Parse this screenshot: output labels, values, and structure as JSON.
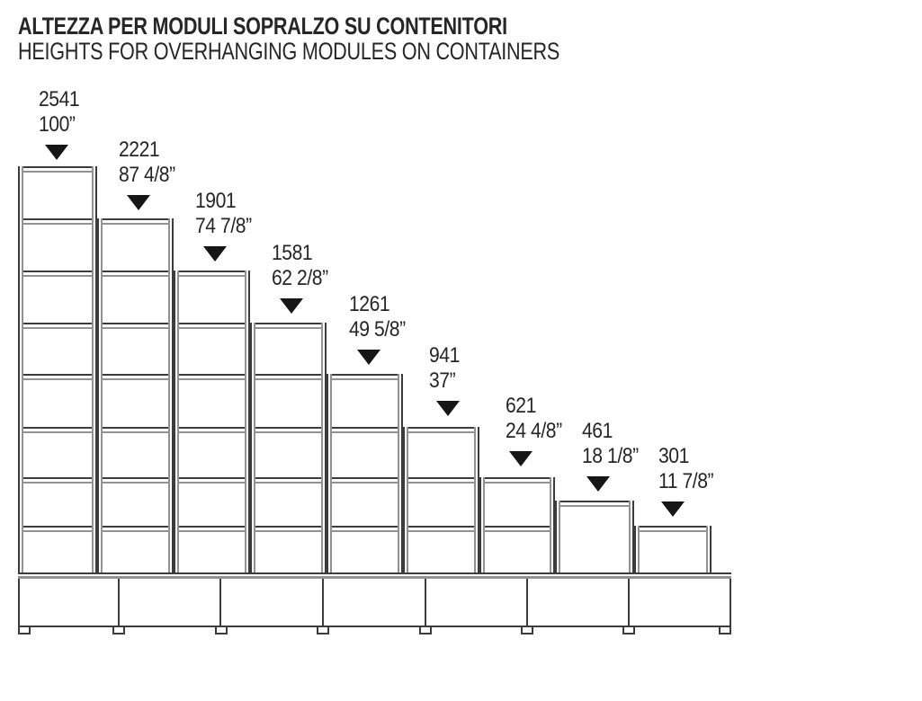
{
  "title": {
    "line1": "ALTEZZA PER MODULI SOPRALZO SU CONTENITORI",
    "line2": "HEIGHTS FOR OVERHANGING MODULES ON CONTAINERS"
  },
  "diagram": {
    "container_units": 7,
    "modules": [
      {
        "height_mm": "2541",
        "height_in": "100”",
        "shelf_rows": 8
      },
      {
        "height_mm": "2221",
        "height_in": "87 4/8”",
        "shelf_rows": 7
      },
      {
        "height_mm": "1901",
        "height_in": "74 7/8”",
        "shelf_rows": 6
      },
      {
        "height_mm": "1581",
        "height_in": "62 2/8”",
        "shelf_rows": 5
      },
      {
        "height_mm": "1261",
        "height_in": "49 5/8”",
        "shelf_rows": 4
      },
      {
        "height_mm": "941",
        "height_in": "37”",
        "shelf_rows": 3
      },
      {
        "height_mm": "621",
        "height_in": "24 4/8”",
        "shelf_rows": 2
      },
      {
        "height_mm": "461",
        "height_in": "18 1/8”",
        "shelf_rows": 1
      },
      {
        "height_mm": "301",
        "height_in": "11 7/8”",
        "shelf_rows": 1
      }
    ]
  },
  "colors": {
    "line_dark": "#3c3c3c",
    "line_gray": "#929292",
    "text": "#262626",
    "triangle": "#161616",
    "background": "#ffffff"
  }
}
